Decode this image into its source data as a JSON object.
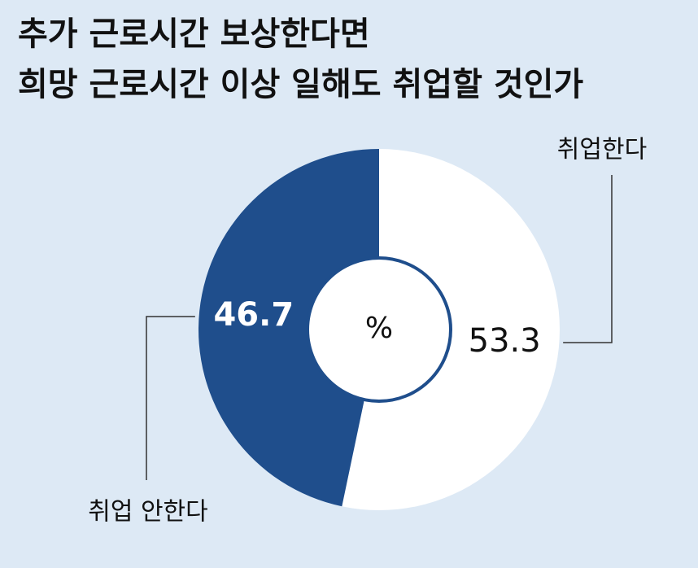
{
  "chart_data": {
    "type": "donut",
    "title": [
      "추가 근로시간 보상한다면",
      "희망 근로시간 이상 일해도 취업할 것인가"
    ],
    "center_label": "%",
    "categories": [
      "취업한다",
      "취업 안한다"
    ],
    "values": [
      53.3,
      46.7
    ],
    "colors": [
      "#ffffff",
      "#1f4e8c"
    ]
  }
}
